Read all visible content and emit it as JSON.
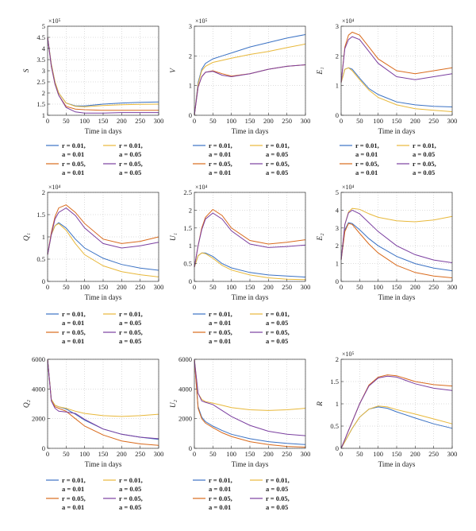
{
  "series_colors": [
    "#3b72c4",
    "#e8b83a",
    "#d96a1c",
    "#7b3fa0"
  ],
  "chart_data": [
    {
      "type": "line",
      "ylabel": "S",
      "xlabel": "Time in days",
      "multiplier": "×10⁵",
      "x": [
        0,
        10,
        20,
        30,
        50,
        75,
        100,
        150,
        200,
        250,
        300
      ],
      "xlim": [
        0,
        300
      ],
      "xticks": [
        "0",
        "50",
        "100",
        "150",
        "200",
        "250",
        "300"
      ],
      "ylim": [
        1,
        5
      ],
      "yticks": [
        "1",
        "1.5",
        "2",
        "2.5",
        "3",
        "3.5",
        "4",
        "4.5",
        "5"
      ],
      "series": [
        {
          "name": "r = 0.01, a = 0.01",
          "values": [
            4.5,
            3.3,
            2.5,
            2.0,
            1.55,
            1.42,
            1.42,
            1.5,
            1.55,
            1.58,
            1.6
          ]
        },
        {
          "name": "r = 0.01, a = 0.05",
          "values": [
            4.5,
            3.3,
            2.5,
            2.0,
            1.55,
            1.4,
            1.38,
            1.44,
            1.47,
            1.49,
            1.5
          ]
        },
        {
          "name": "r = 0.05, a = 0.01",
          "values": [
            4.5,
            3.2,
            2.4,
            1.9,
            1.4,
            1.28,
            1.25,
            1.22,
            1.22,
            1.22,
            1.22
          ]
        },
        {
          "name": "r = 0.05, a = 0.05",
          "values": [
            4.5,
            3.2,
            2.4,
            1.9,
            1.35,
            1.15,
            1.1,
            1.1,
            1.12,
            1.12,
            1.12
          ]
        }
      ]
    },
    {
      "type": "line",
      "ylabel": "V",
      "xlabel": "Time in days",
      "multiplier": "×10⁵",
      "x": [
        0,
        10,
        20,
        30,
        50,
        75,
        100,
        150,
        200,
        250,
        300
      ],
      "xlim": [
        0,
        300
      ],
      "xticks": [
        "0",
        "50",
        "100",
        "150",
        "200",
        "250",
        "300"
      ],
      "ylim": [
        0,
        3
      ],
      "yticks": [
        "0",
        "1",
        "2",
        "3"
      ],
      "series": [
        {
          "name": "r = 0.01, a = 0.01",
          "values": [
            0,
            1.1,
            1.55,
            1.75,
            1.9,
            2.0,
            2.1,
            2.3,
            2.45,
            2.6,
            2.72
          ]
        },
        {
          "name": "r = 0.01, a = 0.05",
          "values": [
            0,
            1.05,
            1.5,
            1.65,
            1.78,
            1.85,
            1.92,
            2.05,
            2.15,
            2.28,
            2.4
          ]
        },
        {
          "name": "r = 0.05, a = 0.01",
          "values": [
            0,
            0.95,
            1.3,
            1.45,
            1.5,
            1.4,
            1.32,
            1.4,
            1.55,
            1.65,
            1.7
          ]
        },
        {
          "name": "r = 0.05, a = 0.05",
          "values": [
            0,
            0.95,
            1.3,
            1.45,
            1.48,
            1.35,
            1.3,
            1.4,
            1.55,
            1.65,
            1.7
          ]
        }
      ]
    },
    {
      "type": "line",
      "ylabel": "E₁",
      "xlabel": "Time in days",
      "multiplier": "×10⁴",
      "x": [
        0,
        10,
        20,
        30,
        50,
        75,
        100,
        150,
        200,
        250,
        300
      ],
      "xlim": [
        0,
        300
      ],
      "xticks": [
        "0",
        "50",
        "100",
        "150",
        "200",
        "250",
        "300"
      ],
      "ylim": [
        0,
        3
      ],
      "yticks": [
        "0",
        "1",
        "2",
        "3"
      ],
      "series": [
        {
          "name": "r = 0.01, a = 0.01",
          "values": [
            1.1,
            1.55,
            1.6,
            1.55,
            1.25,
            0.9,
            0.7,
            0.45,
            0.35,
            0.3,
            0.28
          ]
        },
        {
          "name": "r = 0.01, a = 0.05",
          "values": [
            1.1,
            1.55,
            1.6,
            1.5,
            1.2,
            0.85,
            0.6,
            0.35,
            0.22,
            0.17,
            0.12
          ]
        },
        {
          "name": "r = 0.05, a = 0.01",
          "values": [
            1.1,
            2.3,
            2.7,
            2.8,
            2.7,
            2.3,
            1.9,
            1.5,
            1.4,
            1.5,
            1.6
          ]
        },
        {
          "name": "r = 0.05, a = 0.05",
          "values": [
            1.1,
            2.25,
            2.55,
            2.65,
            2.55,
            2.15,
            1.75,
            1.3,
            1.2,
            1.3,
            1.4
          ]
        }
      ]
    },
    {
      "type": "line",
      "ylabel": "Q₁",
      "xlabel": "Time in days",
      "multiplier": "×10⁴",
      "x": [
        0,
        10,
        20,
        30,
        50,
        75,
        100,
        150,
        200,
        250,
        300
      ],
      "xlim": [
        0,
        300
      ],
      "xticks": [
        "0",
        "50",
        "100",
        "150",
        "200",
        "250",
        "300"
      ],
      "ylim": [
        0,
        2
      ],
      "yticks": [
        "0",
        "0.5",
        "1",
        "1.5",
        "2"
      ],
      "series": [
        {
          "name": "r = 0.01, a = 0.01",
          "values": [
            0.6,
            1.05,
            1.25,
            1.32,
            1.2,
            0.95,
            0.75,
            0.52,
            0.38,
            0.3,
            0.25
          ]
        },
        {
          "name": "r = 0.01, a = 0.05",
          "values": [
            0.6,
            1.05,
            1.25,
            1.3,
            1.15,
            0.85,
            0.6,
            0.35,
            0.22,
            0.15,
            0.1
          ]
        },
        {
          "name": "r = 0.05, a = 0.01",
          "values": [
            0.6,
            1.1,
            1.45,
            1.65,
            1.72,
            1.55,
            1.3,
            0.95,
            0.85,
            0.9,
            1.0
          ]
        },
        {
          "name": "r = 0.05, a = 0.05",
          "values": [
            0.6,
            1.05,
            1.4,
            1.55,
            1.65,
            1.48,
            1.2,
            0.85,
            0.75,
            0.8,
            0.88
          ]
        }
      ]
    },
    {
      "type": "line",
      "ylabel": "U₁",
      "xlabel": "Time in days",
      "multiplier": "×10⁴",
      "x": [
        0,
        10,
        20,
        30,
        50,
        75,
        100,
        150,
        200,
        250,
        300
      ],
      "xlim": [
        0,
        300
      ],
      "xticks": [
        "0",
        "50",
        "100",
        "150",
        "200",
        "250",
        "300"
      ],
      "ylim": [
        0,
        2.5
      ],
      "yticks": [
        "0",
        "0.5",
        "1",
        "1.5",
        "2",
        "2.5"
      ],
      "series": [
        {
          "name": "r = 0.01, a = 0.01",
          "values": [
            0.4,
            0.72,
            0.8,
            0.8,
            0.7,
            0.5,
            0.38,
            0.25,
            0.18,
            0.15,
            0.12
          ]
        },
        {
          "name": "r = 0.01, a = 0.05",
          "values": [
            0.4,
            0.72,
            0.8,
            0.78,
            0.65,
            0.45,
            0.32,
            0.18,
            0.1,
            0.06,
            0.05
          ]
        },
        {
          "name": "r = 0.05, a = 0.01",
          "values": [
            0.4,
            1.0,
            1.5,
            1.8,
            2.02,
            1.85,
            1.5,
            1.15,
            1.05,
            1.1,
            1.17
          ]
        },
        {
          "name": "r = 0.05, a = 0.05",
          "values": [
            0.4,
            1.0,
            1.45,
            1.75,
            1.92,
            1.75,
            1.42,
            1.05,
            0.95,
            0.98,
            1.02
          ]
        }
      ]
    },
    {
      "type": "line",
      "ylabel": "E₂",
      "xlabel": "Time in days",
      "multiplier": "×10⁴",
      "x": [
        0,
        10,
        20,
        30,
        50,
        75,
        100,
        150,
        200,
        250,
        300
      ],
      "xlim": [
        0,
        300
      ],
      "xticks": [
        "0",
        "50",
        "100",
        "150",
        "200",
        "250",
        "300"
      ],
      "ylim": [
        0,
        5
      ],
      "yticks": [
        "0",
        "1",
        "2",
        "3",
        "4",
        "5"
      ],
      "series": [
        {
          "name": "r = 0.01, a = 0.01",
          "values": [
            1.2,
            2.9,
            3.3,
            3.25,
            2.9,
            2.4,
            2.0,
            1.4,
            1.0,
            0.75,
            0.6
          ]
        },
        {
          "name": "r = 0.01, a = 0.05",
          "values": [
            1.2,
            3.2,
            3.9,
            4.1,
            4.05,
            3.8,
            3.6,
            3.4,
            3.35,
            3.45,
            3.65
          ]
        },
        {
          "name": "r = 0.05, a = 0.01",
          "values": [
            1.2,
            2.8,
            3.25,
            3.2,
            2.7,
            2.1,
            1.6,
            0.9,
            0.5,
            0.3,
            0.2
          ]
        },
        {
          "name": "r = 0.05, a = 0.05",
          "values": [
            1.2,
            3.2,
            3.85,
            4.0,
            3.8,
            3.3,
            2.8,
            2.0,
            1.5,
            1.2,
            1.05
          ]
        }
      ]
    },
    {
      "type": "line",
      "ylabel": "Q₂",
      "xlabel": "Time in days",
      "multiplier": "",
      "x": [
        0,
        10,
        20,
        30,
        50,
        75,
        100,
        150,
        200,
        250,
        300
      ],
      "xlim": [
        0,
        300
      ],
      "xticks": [
        "0",
        "50",
        "100",
        "150",
        "200",
        "250",
        "300"
      ],
      "ylim": [
        0,
        6000
      ],
      "yticks": [
        "0",
        "2000",
        "4000",
        "6000"
      ],
      "series": [
        {
          "name": "r = 0.01, a = 0.01",
          "values": [
            6000,
            3300,
            2900,
            2800,
            2650,
            2300,
            1900,
            1300,
            950,
            750,
            600
          ]
        },
        {
          "name": "r = 0.01, a = 0.05",
          "values": [
            6000,
            3300,
            2900,
            2800,
            2700,
            2500,
            2350,
            2200,
            2150,
            2200,
            2300
          ]
        },
        {
          "name": "r = 0.05, a = 0.01",
          "values": [
            6000,
            3200,
            2800,
            2700,
            2500,
            2000,
            1500,
            900,
            500,
            300,
            200
          ]
        },
        {
          "name": "r = 0.05, a = 0.05",
          "values": [
            6000,
            3200,
            2700,
            2500,
            2450,
            2350,
            1950,
            1300,
            950,
            750,
            650
          ]
        }
      ]
    },
    {
      "type": "line",
      "ylabel": "U₂",
      "xlabel": "Time in days",
      "multiplier": "",
      "x": [
        0,
        10,
        20,
        30,
        50,
        75,
        100,
        150,
        200,
        250,
        300
      ],
      "xlim": [
        0,
        300
      ],
      "xticks": [
        "0",
        "50",
        "100",
        "150",
        "200",
        "250",
        "300"
      ],
      "ylim": [
        0,
        6000
      ],
      "yticks": [
        "0",
        "2000",
        "4000",
        "6000"
      ],
      "series": [
        {
          "name": "r = 0.01, a = 0.01",
          "values": [
            6000,
            2800,
            2100,
            1800,
            1500,
            1200,
            950,
            650,
            450,
            330,
            250
          ]
        },
        {
          "name": "r = 0.01, a = 0.05",
          "values": [
            6000,
            3700,
            3300,
            3150,
            3050,
            2900,
            2750,
            2600,
            2550,
            2600,
            2700
          ]
        },
        {
          "name": "r = 0.05, a = 0.01",
          "values": [
            6000,
            2700,
            2000,
            1700,
            1400,
            1050,
            800,
            450,
            250,
            130,
            80
          ]
        },
        {
          "name": "r = 0.05, a = 0.05",
          "values": [
            6000,
            3700,
            3200,
            3100,
            2950,
            2550,
            2150,
            1550,
            1150,
            950,
            850
          ]
        }
      ]
    },
    {
      "type": "line",
      "ylabel": "R",
      "xlabel": "Time in days",
      "multiplier": "×10⁵",
      "x": [
        0,
        10,
        20,
        30,
        50,
        75,
        100,
        125,
        150,
        200,
        250,
        300
      ],
      "xlim": [
        0,
        300
      ],
      "xticks": [
        "0",
        "50",
        "100",
        "150",
        "200",
        "250",
        "300"
      ],
      "ylim": [
        0,
        2
      ],
      "yticks": [
        "0",
        "0.5",
        "1",
        "1.5",
        "2"
      ],
      "series": [
        {
          "name": "r = 0.01, a = 0.01",
          "values": [
            0,
            0.15,
            0.3,
            0.45,
            0.7,
            0.88,
            0.93,
            0.9,
            0.82,
            0.68,
            0.55,
            0.45
          ]
        },
        {
          "name": "r = 0.01, a = 0.05",
          "values": [
            0,
            0.15,
            0.3,
            0.45,
            0.7,
            0.88,
            0.95,
            0.93,
            0.87,
            0.77,
            0.66,
            0.55
          ]
        },
        {
          "name": "r = 0.05, a = 0.01",
          "values": [
            0,
            0.2,
            0.4,
            0.6,
            1.0,
            1.42,
            1.6,
            1.65,
            1.63,
            1.5,
            1.43,
            1.4
          ]
        },
        {
          "name": "r = 0.05, a = 0.05",
          "values": [
            0,
            0.2,
            0.4,
            0.6,
            1.0,
            1.4,
            1.58,
            1.62,
            1.6,
            1.45,
            1.35,
            1.3
          ]
        }
      ]
    }
  ],
  "legends": [
    {
      "entries": [
        {
          "r": "r = 0.01,",
          "a": "a = 0.01"
        },
        {
          "r": "r = 0.01,",
          "a": "a = 0.05"
        },
        {
          "r": "r = 0.05,",
          "a": "a = 0.01"
        },
        {
          "r": "r = 0.05,",
          "a": "a = 0.05"
        }
      ]
    }
  ]
}
